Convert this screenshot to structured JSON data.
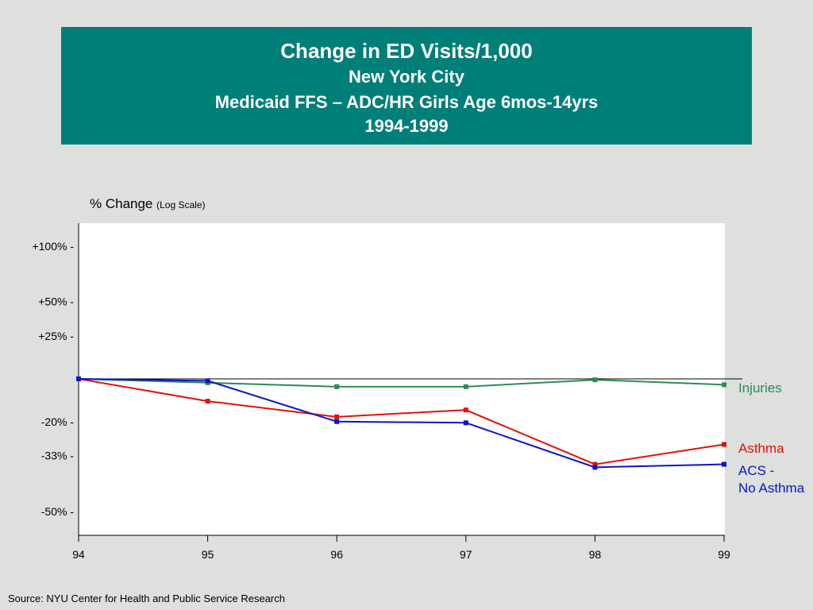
{
  "title": {
    "line1": "Change in ED Visits/1,000",
    "line2": "New York City",
    "line3": "Medicaid FFS – ADC/HR Girls Age 6mos-14yrs",
    "line4": "1994-1999"
  },
  "source": "Source:  NYU Center for Health and Public Service Research",
  "colors": {
    "title_bg": "#007f78",
    "background": "#dde0dc",
    "Injuries": "#2e8b57",
    "Asthma": "#e0120b",
    "ACS": "#0a14c8"
  },
  "chart_data": {
    "type": "line",
    "ylabel": "% Change",
    "ylabel_note": "(Log Scale)",
    "y_scale": "log of ratio (1 + % change)",
    "y_ticks": [
      {
        "label": "+100%",
        "value": 100
      },
      {
        "label": "+50%",
        "value": 50
      },
      {
        "label": "+25%",
        "value": 25
      },
      {
        "label": "-20%",
        "value": -20
      },
      {
        "label": "-33%",
        "value": -33
      },
      {
        "label": "-50%",
        "value": -50
      }
    ],
    "ylim": [
      -53,
      118
    ],
    "x": [
      "94",
      "95",
      "96",
      "97",
      "98",
      "99"
    ],
    "series": [
      {
        "name": "Injuries",
        "color": "#2e8b57",
        "values": [
          0,
          -2,
          -4,
          -4,
          -0.5,
          -3
        ]
      },
      {
        "name": "Asthma",
        "color": "#e0120b",
        "values": [
          0,
          -11,
          -18,
          -15,
          -36,
          -29
        ]
      },
      {
        "name": "ACS - No Asthma",
        "color": "#0a14c8",
        "values": [
          0,
          -1,
          -20,
          -20.5,
          -37,
          -36
        ]
      }
    ],
    "legend": [
      "Injuries",
      "Asthma",
      "ACS - No Asthma"
    ],
    "legend_placement": "right, next to line ends",
    "grid": false
  }
}
